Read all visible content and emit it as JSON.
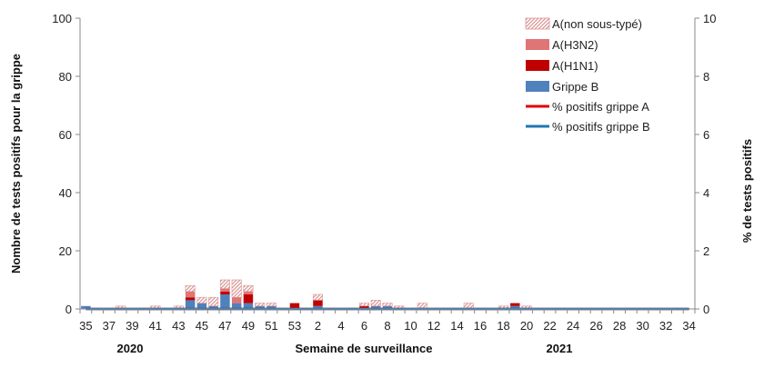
{
  "chart_data": {
    "type": "bar",
    "stacked": true,
    "xlabel": "Semaine de surveillance",
    "ylabel": "Nombre de tests positifs pour la grippe",
    "y2label": "% de tests positifs",
    "ylim": [
      0,
      100
    ],
    "y2lim": [
      0,
      10
    ],
    "yticks": [
      "0",
      "20",
      "40",
      "60",
      "80",
      "100"
    ],
    "y2ticks": [
      "0",
      "2",
      "4",
      "6",
      "8",
      "10"
    ],
    "year_labels": [
      "2020",
      "2021"
    ],
    "grid": false,
    "legend_position": "top-right",
    "weeks": [
      "35",
      "36",
      "37",
      "38",
      "39",
      "40",
      "41",
      "42",
      "43",
      "44",
      "45",
      "46",
      "47",
      "48",
      "49",
      "50",
      "51",
      "52",
      "53",
      "1",
      "2",
      "3",
      "4",
      "5",
      "6",
      "7",
      "8",
      "9",
      "10",
      "11",
      "12",
      "13",
      "14",
      "15",
      "16",
      "17",
      "18",
      "19",
      "20",
      "21",
      "22",
      "23",
      "24",
      "25",
      "26",
      "27",
      "28",
      "29",
      "30",
      "31",
      "32",
      "33",
      "34"
    ],
    "series": [
      {
        "name": "Grippe B",
        "color": "#4f81bd",
        "values": [
          1,
          0,
          0,
          0,
          0,
          0,
          0,
          0,
          0,
          3,
          2,
          1,
          5,
          2,
          2,
          1,
          1,
          0,
          0,
          0,
          1,
          0,
          0,
          0,
          0,
          1,
          1,
          0,
          0,
          0,
          0,
          0,
          0,
          0,
          0,
          0,
          0,
          1,
          0,
          0,
          0,
          0,
          0,
          0,
          0,
          0,
          0,
          0,
          0,
          0,
          0,
          0,
          0
        ]
      },
      {
        "name": "A(H1N1)",
        "color": "#c00000",
        "values": [
          0,
          0,
          0,
          0,
          0,
          0,
          0,
          0,
          0,
          1,
          0,
          0,
          1,
          0,
          3,
          0,
          0,
          0,
          2,
          0,
          2,
          0,
          0,
          0,
          1,
          0,
          0,
          0,
          0,
          0,
          0,
          0,
          0,
          0,
          0,
          0,
          0,
          1,
          0,
          0,
          0,
          0,
          0,
          0,
          0,
          0,
          0,
          0,
          0,
          0,
          0,
          0,
          0
        ]
      },
      {
        "name": "A(H3N2)",
        "color": "#e07575",
        "values": [
          0,
          0,
          0,
          0,
          0,
          0,
          0,
          0,
          0,
          2,
          0,
          0,
          1,
          2,
          1,
          0,
          0,
          0,
          0,
          0,
          0,
          0,
          0,
          0,
          0,
          0,
          0,
          0,
          0,
          0,
          0,
          0,
          0,
          0,
          0,
          0,
          0,
          0,
          0,
          0,
          0,
          0,
          0,
          0,
          0,
          0,
          0,
          0,
          0,
          0,
          0,
          0,
          0
        ]
      },
      {
        "name": "A(non sous-typé)",
        "color": "#d99594",
        "pattern": "hatched",
        "values": [
          0,
          0,
          0,
          1,
          0,
          0,
          1,
          0,
          1,
          2,
          2,
          3,
          3,
          6,
          2,
          1,
          1,
          0,
          0,
          0,
          2,
          0,
          0,
          0,
          1,
          2,
          1,
          1,
          0,
          2,
          0,
          0,
          0,
          2,
          0,
          0,
          1,
          0,
          1,
          0,
          0,
          0,
          0,
          0,
          0,
          0,
          0,
          0,
          0,
          0,
          0,
          0,
          0
        ]
      }
    ],
    "lines": [
      {
        "name": "% positifs grippe A",
        "color": "#e00000",
        "axis": "right",
        "values": [
          0,
          0,
          0,
          0,
          0,
          0,
          0,
          0,
          0,
          0,
          0,
          0,
          0,
          0,
          0,
          0,
          0,
          0,
          0,
          0,
          0,
          0,
          0,
          0,
          0,
          0,
          0,
          0,
          0,
          0,
          0,
          0,
          0,
          0,
          0,
          0,
          0,
          0,
          0,
          0,
          0,
          0,
          0,
          0,
          0,
          0,
          0,
          0,
          0,
          0,
          0,
          0,
          0
        ]
      },
      {
        "name": "% positifs grippe B",
        "color": "#1f77b4",
        "axis": "right",
        "values": [
          0,
          0,
          0,
          0,
          0,
          0,
          0,
          0,
          0,
          0,
          0,
          0,
          0,
          0,
          0,
          0,
          0,
          0,
          0,
          0,
          0,
          0,
          0,
          0,
          0,
          0,
          0,
          0,
          0,
          0,
          0,
          0,
          0,
          0,
          0,
          0,
          0,
          0,
          0,
          0,
          0,
          0,
          0,
          0,
          0,
          0,
          0,
          0,
          0,
          0,
          0,
          0,
          0
        ]
      }
    ]
  }
}
